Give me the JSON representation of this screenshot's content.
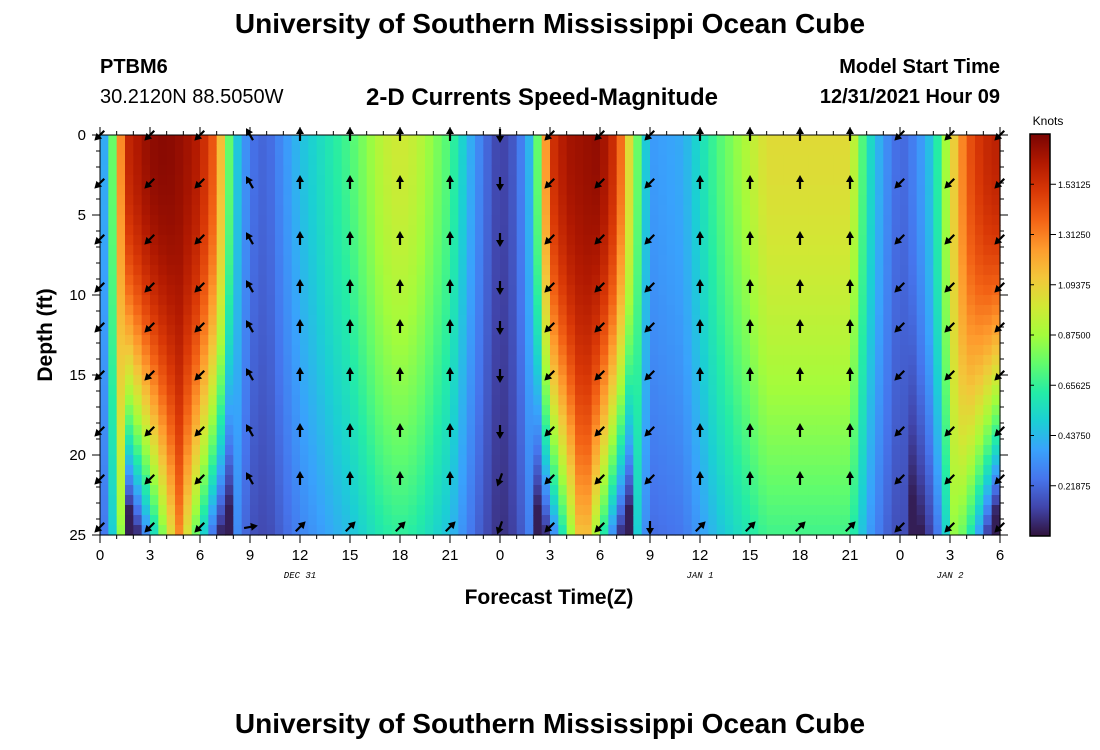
{
  "header": {
    "title": "University of Southern Mississippi Ocean Cube",
    "station_id": "PTBM6",
    "station_coords": "30.2120N  88.5050W",
    "plot_title": "2-D Currents Speed-Magnitude",
    "model_label": "Model Start Time",
    "model_value": "12/31/2021 Hour 09"
  },
  "footer": {
    "title": "University of Southern Mississippi Ocean Cube"
  },
  "chart_data": {
    "type": "heatmap",
    "title": "2-D Currents Speed-Magnitude",
    "xlabel": "Forecast Time(Z)",
    "ylabel": "Depth (ft)",
    "x_ticks": [
      {
        "h": 0,
        "label": "0"
      },
      {
        "h": 3,
        "label": "3"
      },
      {
        "h": 6,
        "label": "6"
      },
      {
        "h": 9,
        "label": "9"
      },
      {
        "h": 12,
        "label": "12"
      },
      {
        "h": 15,
        "label": "15"
      },
      {
        "h": 18,
        "label": "18"
      },
      {
        "h": 21,
        "label": "21"
      },
      {
        "h": 24,
        "label": "0"
      },
      {
        "h": 27,
        "label": "3"
      },
      {
        "h": 30,
        "label": "6"
      },
      {
        "h": 33,
        "label": "9"
      },
      {
        "h": 36,
        "label": "12"
      },
      {
        "h": 39,
        "label": "15"
      },
      {
        "h": 42,
        "label": "18"
      },
      {
        "h": 45,
        "label": "21"
      },
      {
        "h": 48,
        "label": "0"
      },
      {
        "h": 51,
        "label": "3"
      },
      {
        "h": 54,
        "label": "6"
      }
    ],
    "x_range": [
      0,
      54
    ],
    "date_labels": [
      {
        "h": 12,
        "label": "DEC 31"
      },
      {
        "h": 36,
        "label": "JAN 1"
      },
      {
        "h": 51,
        "label": "JAN 2"
      }
    ],
    "y_ticks": [
      0,
      5,
      10,
      15,
      20,
      25
    ],
    "y_range": [
      0,
      25
    ],
    "colorbar": {
      "title": "Knots",
      "range": [
        0,
        1.75
      ],
      "labels": [
        "0.21875",
        "0.43750",
        "0.65625",
        "0.87500",
        "1.09375",
        "1.31250",
        "1.53125"
      ],
      "colors": [
        "#30123b",
        "#4145ab",
        "#4675ed",
        "#39a2fc",
        "#1bcfd4",
        "#24eca6",
        "#61fc6c",
        "#a4fc3b",
        "#d1e834",
        "#f3c63a",
        "#fe9b2d",
        "#f36315",
        "#d93806",
        "#b11901",
        "#7a0402"
      ]
    },
    "surface_speed_profile": {
      "hours": [
        0,
        0.5,
        1.5,
        3,
        4,
        5,
        6,
        7,
        8,
        9,
        10,
        12,
        15,
        17,
        18,
        19,
        21,
        22,
        23,
        24,
        25,
        26,
        27,
        28,
        30,
        31,
        32,
        33,
        35,
        37,
        40,
        45,
        46,
        47,
        48,
        49,
        50,
        51,
        52,
        53,
        54
      ],
      "knots": [
        0.3,
        0.5,
        1.55,
        1.7,
        1.72,
        1.68,
        1.6,
        1.35,
        0.55,
        0.25,
        0.2,
        0.45,
        0.7,
        0.95,
        1.0,
        0.95,
        0.7,
        0.45,
        0.25,
        0.1,
        0.2,
        0.5,
        1.5,
        1.65,
        1.7,
        1.5,
        0.9,
        0.35,
        0.4,
        0.7,
        1.05,
        1.05,
        0.6,
        0.35,
        0.2,
        0.3,
        0.5,
        1.0,
        1.4,
        1.55,
        1.6
      ]
    },
    "quiver": {
      "hours": [
        0,
        3,
        6,
        9,
        12,
        15,
        18,
        21,
        24,
        27,
        30,
        33,
        36,
        39,
        42,
        45,
        48,
        51,
        54
      ],
      "depths": [
        0,
        3,
        6.5,
        9.5,
        12,
        15,
        18.5,
        21.5,
        24.5
      ],
      "direction": "southwest on strong ebb phases, north on weak flood phases"
    }
  }
}
